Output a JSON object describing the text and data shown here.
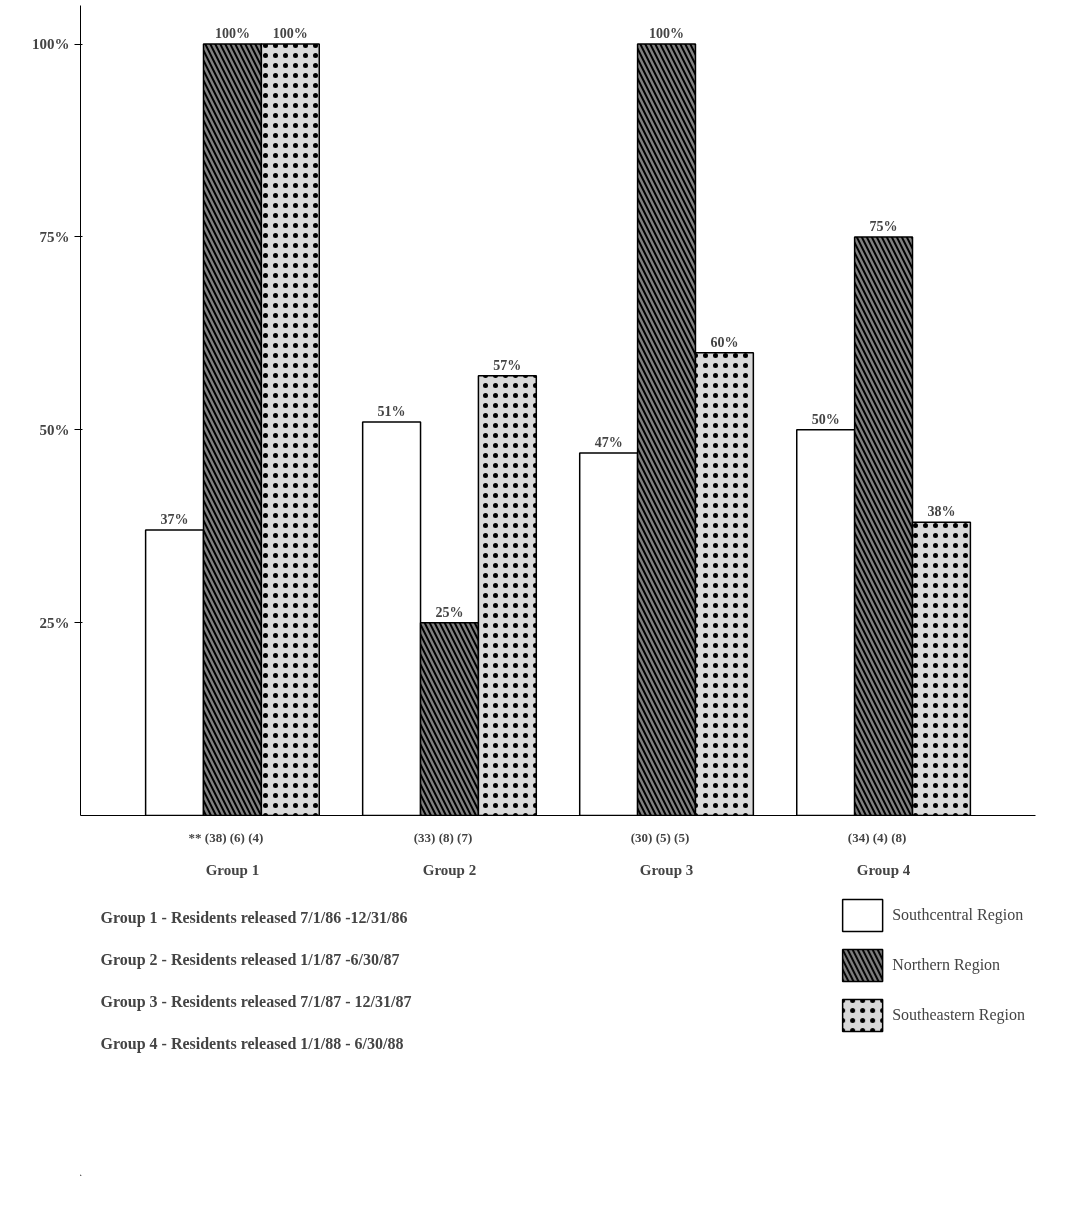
{
  "chart_data": {
    "type": "bar",
    "categories": [
      "Group 1",
      "Group 2",
      "Group 3",
      "Group 4"
    ],
    "series": [
      {
        "name": "Southcentral Region",
        "color": "#ffffff",
        "values": [
          37,
          51,
          47,
          50
        ],
        "value_labels": [
          "37%",
          "51%",
          "47%",
          "50%"
        ]
      },
      {
        "name": "Northern Region",
        "color": "#808080",
        "values": [
          100,
          25,
          100,
          75
        ],
        "value_labels": [
          "100%",
          "25%",
          "100%",
          "75%"
        ]
      },
      {
        "name": "Southeastern Region",
        "color": "#d9d9d9",
        "values": [
          100,
          57,
          60,
          38
        ],
        "value_labels": [
          "100%",
          "57%",
          "60%",
          "38%"
        ]
      }
    ],
    "ylim": [
      0,
      105
    ],
    "yticks": [
      {
        "value": 25,
        "label": "25%"
      },
      {
        "value": 50,
        "label": "50%"
      },
      {
        "value": 75,
        "label": "75%"
      },
      {
        "value": 100,
        "label": "100%"
      }
    ],
    "grid": false,
    "legend": "bottom right",
    "annotations": [
      "** (38)   (6)   (4)",
      "(33)   (8)   (7)",
      "(30)   (5)   (5)",
      "(34)   (4)   (8)",
      "Group 1 - Residents released 7/1/86 -12/31/86",
      "Group 2 - Residents released 1/1/87 -6/30/87",
      "Group 3 - Residents released 7/1/87 - 12/31/87",
      "Group 4 - Residents released 1/1/88 - 6/30/88"
    ]
  }
}
